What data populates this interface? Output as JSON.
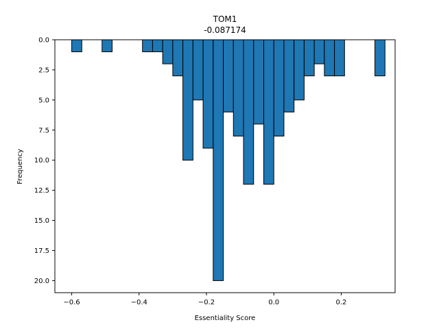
{
  "chart_data": {
    "type": "bar",
    "title": "TOM1",
    "subtitle": "-0.087174",
    "xlabel": "Essentiality Score",
    "ylabel": "Frequency",
    "xlim": [
      -0.65,
      0.36
    ],
    "ylim": [
      0,
      21
    ],
    "y_inverted": true,
    "bin_width": 0.03,
    "x_ticks": [
      -0.6,
      -0.4,
      -0.2,
      0.0,
      0.2
    ],
    "x_tick_labels": [
      "−0.6",
      "−0.4",
      "−0.2",
      "0.0",
      "0.2"
    ],
    "y_ticks": [
      0,
      2.5,
      5,
      7.5,
      10,
      12.5,
      15,
      17.5,
      20
    ],
    "y_tick_labels": [
      "0.0",
      "2.5",
      "5.0",
      "7.5",
      "10.0",
      "12.5",
      "15.0",
      "17.5",
      "20.0"
    ],
    "bin_starts": [
      -0.6,
      -0.51,
      -0.39,
      -0.36,
      -0.33,
      -0.3,
      -0.27,
      -0.24,
      -0.21,
      -0.18,
      -0.15,
      -0.12,
      -0.09,
      -0.06,
      -0.03,
      0.0,
      0.03,
      0.06,
      0.09,
      0.12,
      0.15,
      0.18,
      0.3
    ],
    "values": [
      1,
      1,
      1,
      1,
      2,
      3,
      10,
      5,
      9,
      20,
      6,
      8,
      12,
      7,
      12,
      8,
      6,
      5,
      3,
      2,
      3,
      3,
      3
    ],
    "bar_color": "#1f77b4",
    "edge_color": "#000000",
    "grid": false
  }
}
